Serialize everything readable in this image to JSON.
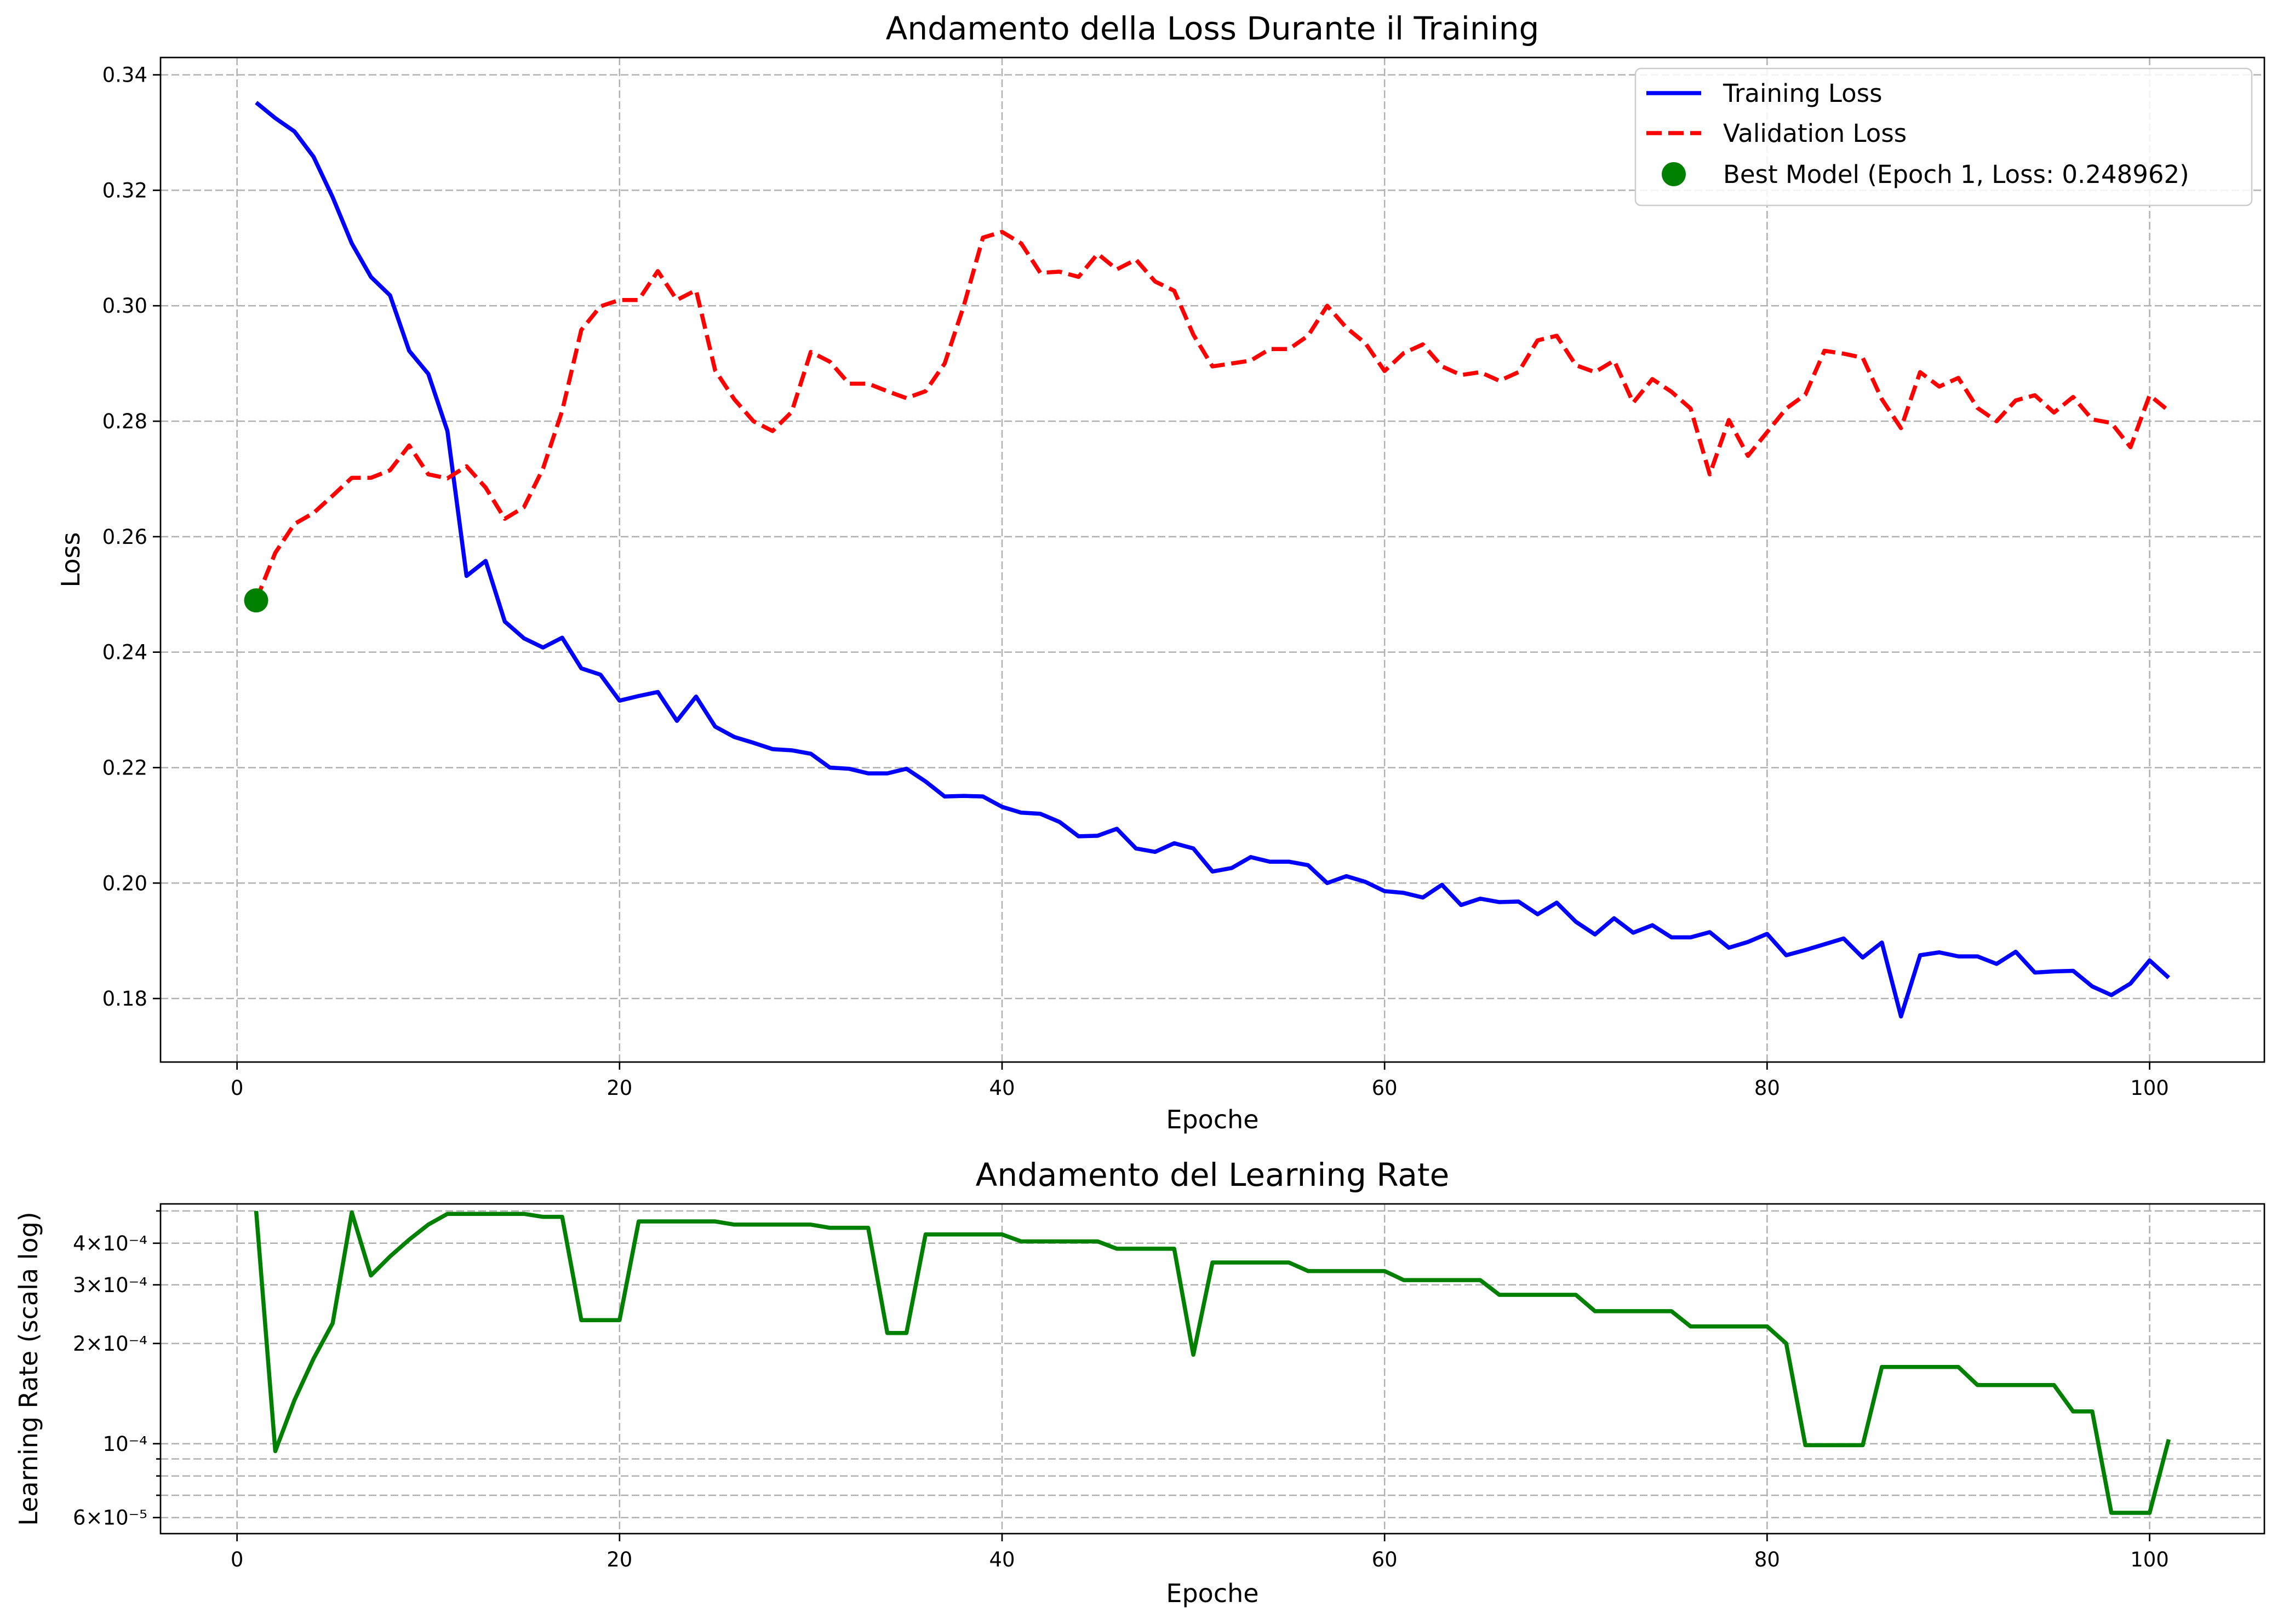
{
  "chart_data": [
    {
      "type": "line",
      "title": "Andamento della Loss Durante il Training",
      "xlabel": "Epoche",
      "ylabel": "Loss",
      "xlim": [
        -4,
        106
      ],
      "ylim": [
        0.169,
        0.343
      ],
      "xticks": [
        0,
        20,
        40,
        60,
        80,
        100
      ],
      "yticks": [
        0.18,
        0.2,
        0.22,
        0.24,
        0.26,
        0.28,
        0.3,
        0.32,
        0.34
      ],
      "ytick_labels": [
        "0.18",
        "0.20",
        "0.22",
        "0.24",
        "0.26",
        "0.28",
        "0.30",
        "0.32",
        "0.34"
      ],
      "grid": true,
      "legend_position": "top-right",
      "series": [
        {
          "name": "Training Loss",
          "color": "#0000ff",
          "style": "solid",
          "x_start": 1,
          "values": [
            0.3352,
            0.3325,
            0.3302,
            0.3258,
            0.3188,
            0.3108,
            0.305,
            0.3018,
            0.2922,
            0.2882,
            0.2783,
            0.2532,
            0.2558,
            0.2453,
            0.2424,
            0.2408,
            0.2425,
            0.2372,
            0.2361,
            0.2316,
            0.2324,
            0.2331,
            0.2281,
            0.2323,
            0.2271,
            0.2253,
            0.2243,
            0.2232,
            0.223,
            0.2224,
            0.22,
            0.2198,
            0.219,
            0.219,
            0.2198,
            0.2176,
            0.215,
            0.2151,
            0.215,
            0.2132,
            0.2122,
            0.212,
            0.2106,
            0.2081,
            0.2082,
            0.2094,
            0.206,
            0.2054,
            0.2069,
            0.206,
            0.202,
            0.2026,
            0.2045,
            0.2037,
            0.2037,
            0.2031,
            0.2,
            0.2012,
            0.2002,
            0.1986,
            0.1983,
            0.1975,
            0.1997,
            0.1962,
            0.1973,
            0.1967,
            0.1968,
            0.1946,
            0.1966,
            0.1933,
            0.1911,
            0.1939,
            0.1914,
            0.1927,
            0.1906,
            0.1906,
            0.1915,
            0.1888,
            0.1898,
            0.1912,
            0.1875,
            0.1884,
            0.1894,
            0.1904,
            0.1871,
            0.1897,
            0.1769,
            0.1875,
            0.188,
            0.1873,
            0.1873,
            0.186,
            0.1881,
            0.1845,
            0.1847,
            0.1848,
            0.1821,
            0.1806,
            0.1826,
            0.1866,
            0.1836
          ]
        },
        {
          "name": "Validation Loss",
          "color": "#ff0000",
          "style": "dashed",
          "x_start": 1,
          "values": [
            0.249,
            0.2572,
            0.2622,
            0.2641,
            0.2671,
            0.2702,
            0.2702,
            0.2715,
            0.2758,
            0.2708,
            0.2701,
            0.2722,
            0.2685,
            0.2631,
            0.2651,
            0.2718,
            0.2818,
            0.2958,
            0.2999,
            0.301,
            0.301,
            0.306,
            0.301,
            0.3027,
            0.2888,
            0.2838,
            0.28,
            0.2783,
            0.2816,
            0.292,
            0.2903,
            0.2865,
            0.2865,
            0.2852,
            0.284,
            0.2852,
            0.29,
            0.3,
            0.3118,
            0.3128,
            0.3108,
            0.3057,
            0.3059,
            0.305,
            0.309,
            0.3063,
            0.308,
            0.3042,
            0.3026,
            0.295,
            0.2895,
            0.29,
            0.2905,
            0.2925,
            0.2925,
            0.2948,
            0.3,
            0.2962,
            0.2935,
            0.2887,
            0.2918,
            0.2933,
            0.2895,
            0.288,
            0.2885,
            0.287,
            0.2885,
            0.294,
            0.2948,
            0.2897,
            0.2885,
            0.2905,
            0.2832,
            0.2873,
            0.2851,
            0.2822,
            0.2708,
            0.2802,
            0.274,
            0.2781,
            0.2822,
            0.2846,
            0.2922,
            0.2917,
            0.291,
            0.2838,
            0.2788,
            0.2885,
            0.286,
            0.2875,
            0.2823,
            0.28,
            0.2836,
            0.2845,
            0.2815,
            0.2842,
            0.2803,
            0.2797,
            0.2755,
            0.2845,
            0.2818
          ]
        }
      ],
      "points": [
        {
          "name": "Best Model (Epoch 1, Loss: 0.248962)",
          "color": "#008000",
          "x": 1,
          "y": 0.248962
        }
      ]
    },
    {
      "type": "line",
      "title": "Andamento del Learning Rate",
      "xlabel": "Epoche",
      "ylabel": "Learning Rate (scala log)",
      "yscale": "log",
      "xlim": [
        -4,
        106
      ],
      "ylim": [
        5.37e-05,
        0.000525
      ],
      "xticks": [
        0,
        20,
        40,
        60,
        80,
        100
      ],
      "yticks": [
        6e-05,
        0.0001,
        0.0002,
        0.0003,
        0.0004
      ],
      "ytick_labels": [
        "6×10⁻⁵",
        "10⁻⁴",
        "2×10⁻⁴",
        "3×10⁻⁴",
        "4×10⁻⁴"
      ],
      "minor_grid_y": [
        7e-05,
        8e-05,
        9e-05,
        0.0005
      ],
      "grid": true,
      "series": [
        {
          "color": "#008000",
          "style": "solid",
          "x_start": 1,
          "values": [
            0.0005,
            9.5e-05,
            0.000135,
            0.00018,
            0.00023,
            0.000495,
            0.00032,
            0.000365,
            0.00041,
            0.000455,
            0.00049,
            0.00049,
            0.00049,
            0.00049,
            0.00049,
            0.00048,
            0.00048,
            0.000235,
            0.000235,
            0.000235,
            0.000465,
            0.000465,
            0.000465,
            0.000465,
            0.000465,
            0.000455,
            0.000455,
            0.000455,
            0.000455,
            0.000455,
            0.000445,
            0.000445,
            0.000445,
            0.000215,
            0.000215,
            0.000425,
            0.000425,
            0.000425,
            0.000425,
            0.000425,
            0.000405,
            0.000405,
            0.000405,
            0.000405,
            0.000405,
            0.000385,
            0.000385,
            0.000385,
            0.000385,
            0.000185,
            0.00035,
            0.00035,
            0.00035,
            0.00035,
            0.00035,
            0.00033,
            0.00033,
            0.00033,
            0.00033,
            0.00033,
            0.00031,
            0.00031,
            0.00031,
            0.00031,
            0.00031,
            0.00028,
            0.00028,
            0.00028,
            0.00028,
            0.00028,
            0.00025,
            0.00025,
            0.00025,
            0.00025,
            0.00025,
            0.000225,
            0.000225,
            0.000225,
            0.000225,
            0.000225,
            0.0002,
            9.9e-05,
            9.9e-05,
            9.9e-05,
            9.9e-05,
            0.00017,
            0.00017,
            0.00017,
            0.00017,
            0.00017,
            0.00015,
            0.00015,
            0.00015,
            0.00015,
            0.00015,
            0.000125,
            0.000125,
            6.2e-05,
            6.2e-05,
            6.2e-05,
            0.000103
          ]
        }
      ]
    }
  ]
}
